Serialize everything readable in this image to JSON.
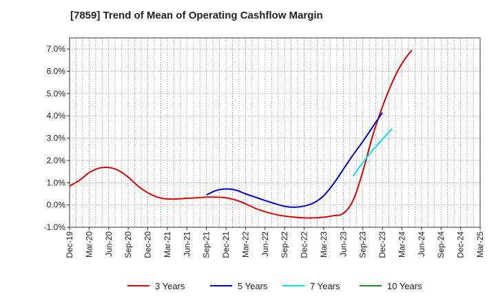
{
  "chart_data": {
    "type": "line",
    "title": "[7859]  Trend of Mean of Operating Cashflow Margin",
    "xlabel": "",
    "ylabel": "",
    "ylim": [
      -1.0,
      7.5
    ],
    "yticks": [
      -1.0,
      0.0,
      1.0,
      2.0,
      3.0,
      4.0,
      5.0,
      6.0,
      7.0
    ],
    "ytick_labels": [
      "-1.0%",
      "0.0%",
      "1.0%",
      "2.0%",
      "3.0%",
      "4.0%",
      "5.0%",
      "6.0%",
      "7.0%"
    ],
    "x_tick_labels": [
      "Dec-19",
      "Mar-20",
      "Jun-20",
      "Sep-20",
      "Dec-20",
      "Mar-21",
      "Jun-21",
      "Sep-21",
      "Dec-21",
      "Mar-22",
      "Jun-22",
      "Sep-22",
      "Dec-22",
      "Mar-23",
      "Jun-23",
      "Sep-23",
      "Dec-23",
      "Mar-24",
      "Jun-24",
      "Sep-24",
      "Dec-24",
      "Mar-25"
    ],
    "grid": true,
    "legend_position": "bottom",
    "series": [
      {
        "name": "3 Years",
        "color": "#dd0000",
        "values": [
          0.85,
          1.1,
          1.45,
          1.65,
          1.68,
          1.55,
          1.25,
          0.85,
          0.55,
          0.35,
          0.27,
          0.27,
          0.3,
          0.32,
          0.35,
          0.35,
          0.32,
          0.22,
          0.05,
          -0.15,
          -0.3,
          -0.42,
          -0.5,
          -0.55,
          -0.58,
          -0.58,
          -0.55,
          -0.48,
          -0.38,
          0.2,
          1.5,
          3.1,
          4.4,
          5.5,
          6.35,
          6.95
        ]
      },
      {
        "name": "5 Years",
        "color": "#0000cc",
        "values": [
          null,
          null,
          null,
          null,
          null,
          null,
          null,
          null,
          null,
          null,
          null,
          null,
          null,
          null,
          0.45,
          0.65,
          0.72,
          0.67,
          0.5,
          0.35,
          0.2,
          0.06,
          -0.06,
          -0.1,
          -0.05,
          0.1,
          0.42,
          0.95,
          1.6,
          2.25,
          2.85,
          3.5,
          4.15
        ]
      },
      {
        "name": "7 Years",
        "color": "#00e5ee",
        "values": [
          null,
          null,
          null,
          null,
          null,
          null,
          null,
          null,
          null,
          null,
          null,
          null,
          null,
          null,
          null,
          null,
          null,
          null,
          null,
          null,
          null,
          null,
          null,
          null,
          null,
          null,
          null,
          null,
          null,
          1.3,
          1.9,
          2.45,
          2.95,
          3.42
        ]
      },
      {
        "name": "10 Years",
        "color": "#228b22",
        "values": []
      }
    ]
  }
}
